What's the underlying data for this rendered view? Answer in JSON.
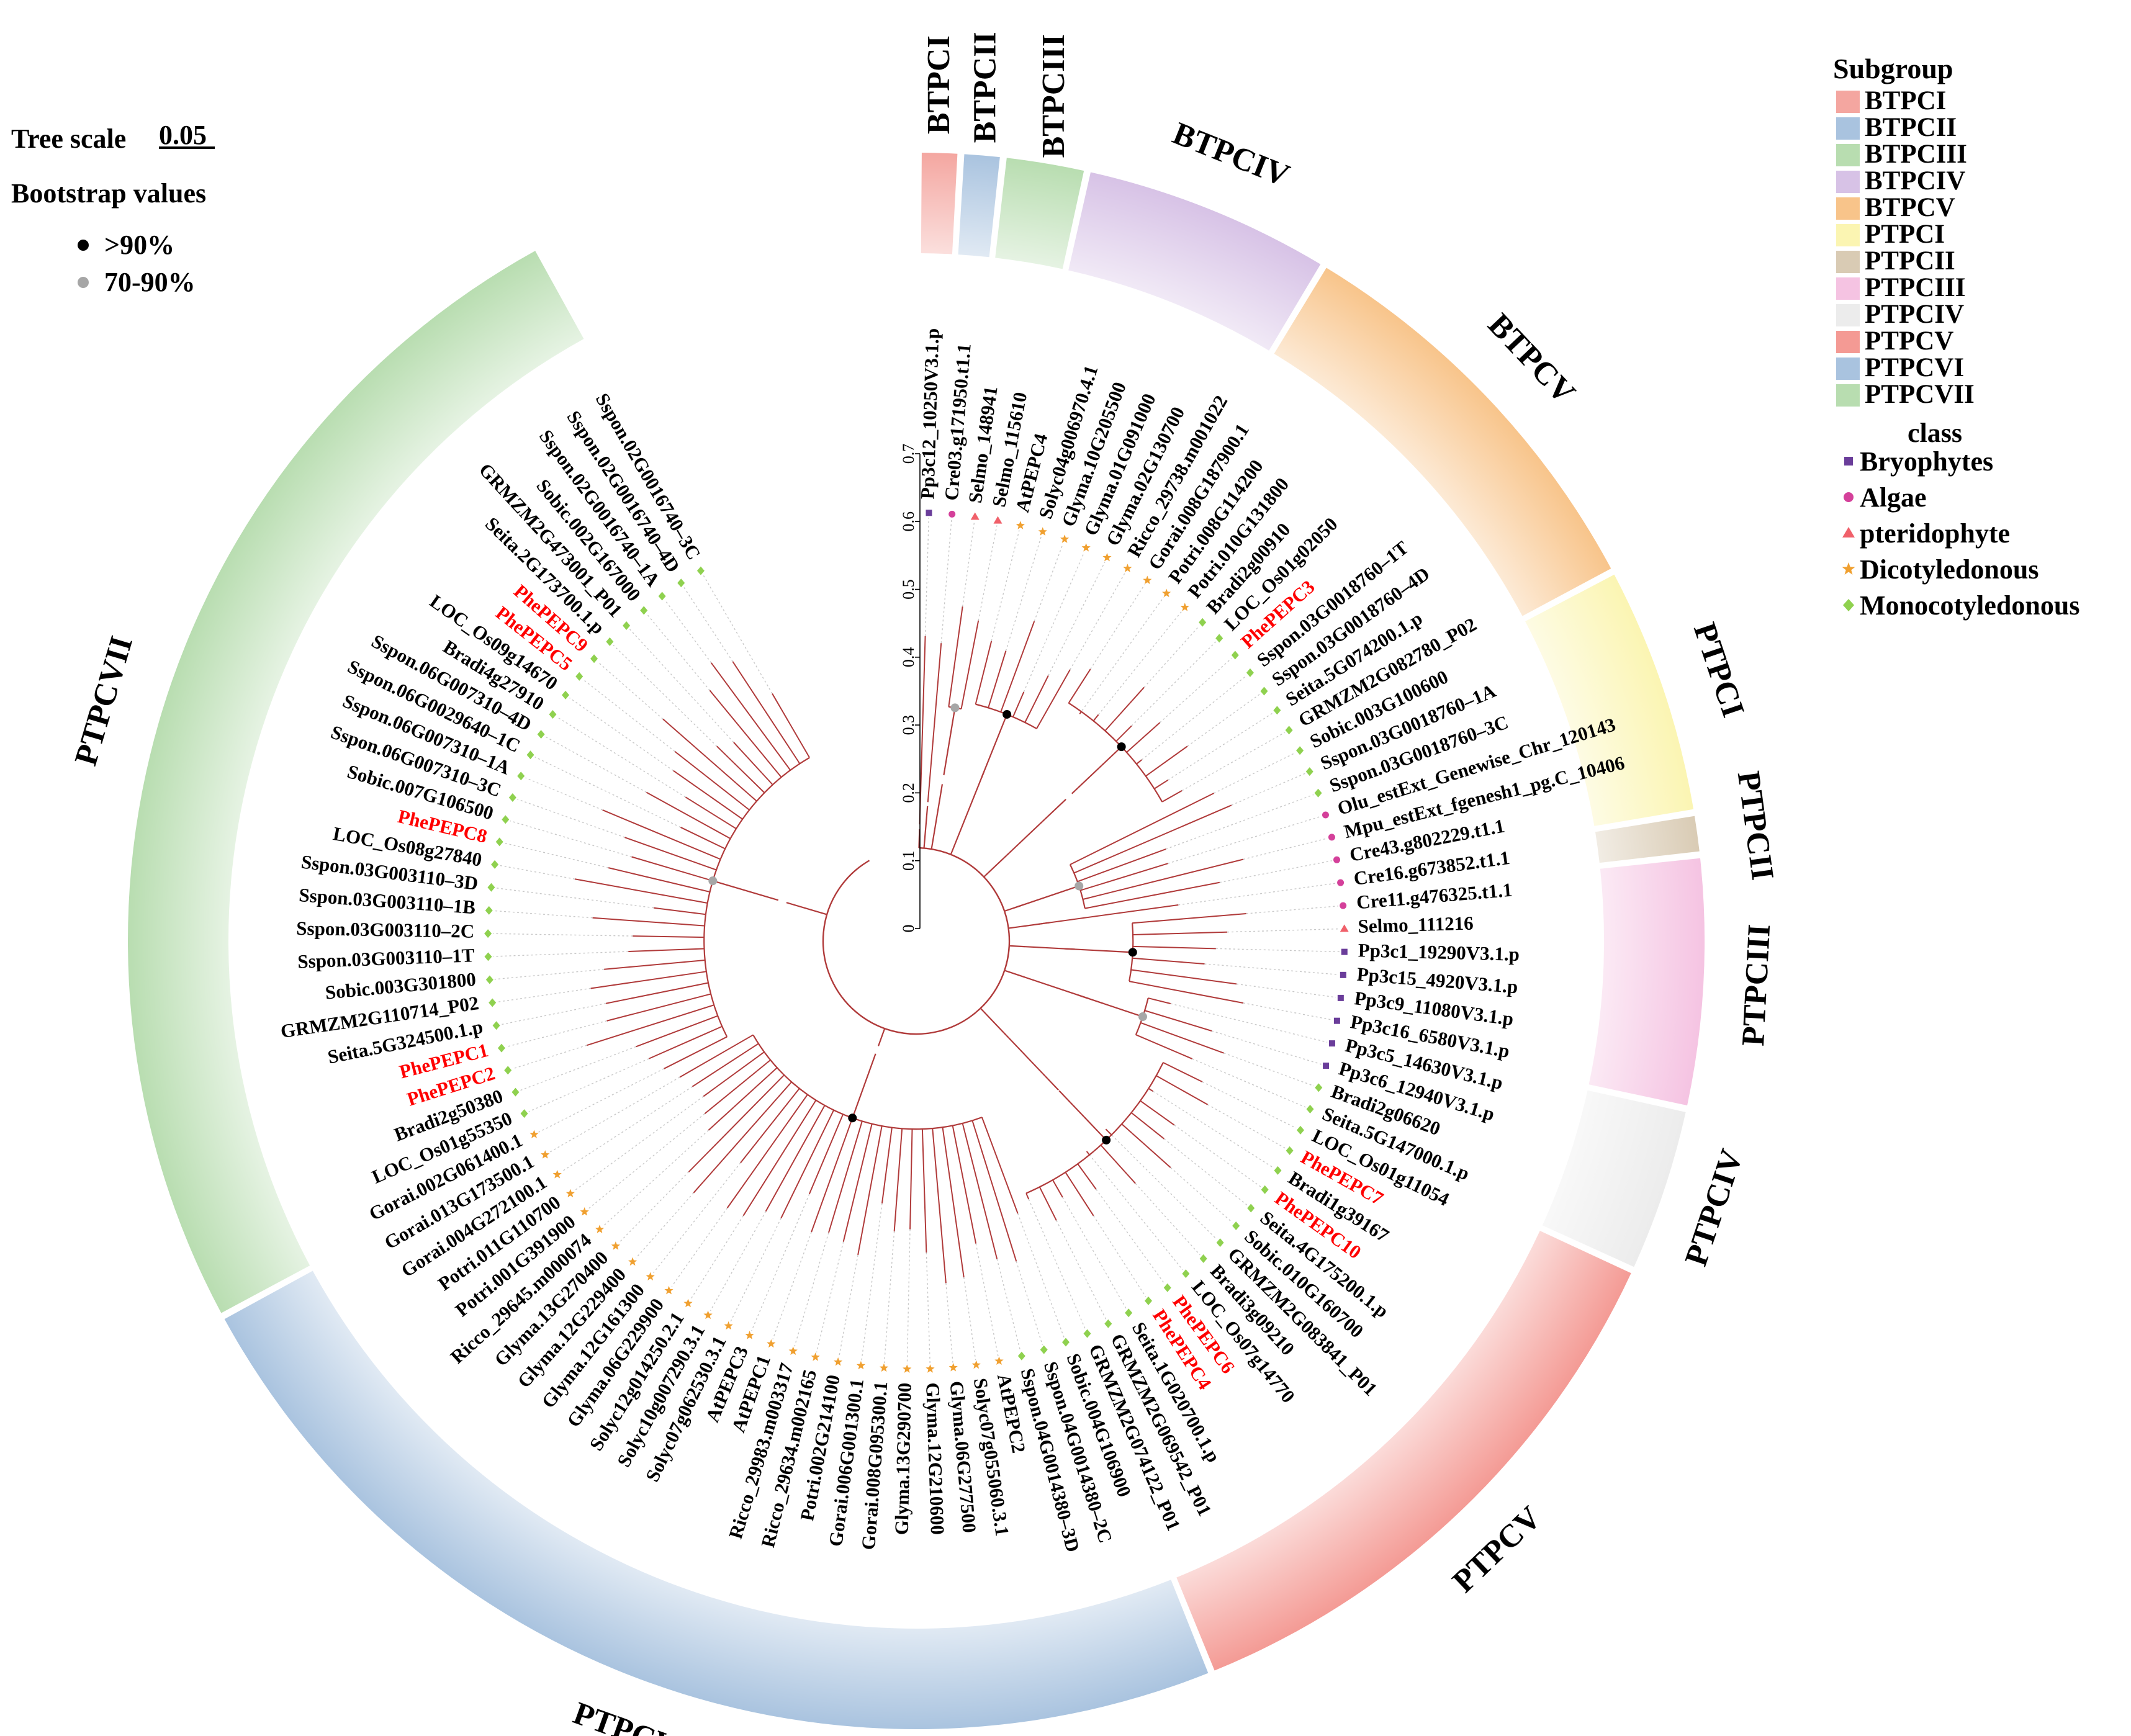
{
  "tree_scale": {
    "label": "Tree scale",
    "value": "0.05"
  },
  "bootstrap": {
    "title": "Bootstrap values",
    "items": [
      {
        "label": ">90%",
        "color": "#000000"
      },
      {
        "label": "70-90%",
        "color": "#a6a6a6"
      }
    ]
  },
  "subgroup_legend": {
    "title": "Subgroup",
    "items": [
      {
        "label": "BTPCI",
        "color": "#f4a6a0"
      },
      {
        "label": "BTPCII",
        "color": "#a9c3df"
      },
      {
        "label": "BTPCIII",
        "color": "#b8ddb0"
      },
      {
        "label": "BTPCIV",
        "color": "#d7c2e6"
      },
      {
        "label": "BTPCV",
        "color": "#f8c48a"
      },
      {
        "label": "PTPCI",
        "color": "#fbf5b2"
      },
      {
        "label": "PTPCII",
        "color": "#d9cbb4"
      },
      {
        "label": "PTPCIII",
        "color": "#f5c3e2"
      },
      {
        "label": "PTPCIV",
        "color": "#ececec"
      },
      {
        "label": "PTPCV",
        "color": "#f49a94"
      },
      {
        "label": "PTPCVI",
        "color": "#a9c3df"
      },
      {
        "label": "PTPCVII",
        "color": "#b8ddb0"
      }
    ]
  },
  "class_legend": {
    "title": "class",
    "items": [
      {
        "label": "Bryophytes",
        "shape": "square",
        "color": "#6a3d9a"
      },
      {
        "label": "Algae",
        "shape": "circle",
        "color": "#d4409a"
      },
      {
        "label": "pteridophyte",
        "shape": "triangle",
        "color": "#f0606a"
      },
      {
        "label": "Dicotyledonous",
        "shape": "star",
        "color": "#f0a030"
      },
      {
        "label": "Monocotyledonous",
        "shape": "diamond",
        "color": "#8fd14f"
      }
    ]
  },
  "colors": {
    "branch": "#b03a3a",
    "highlight": "#ff0000",
    "guide": "#c8c8c8"
  },
  "scale_ticks": [
    "0.7",
    "0.6",
    "0.5",
    "0.4",
    "0.3",
    "0.2",
    "0.1",
    "0"
  ],
  "subgroups": [
    {
      "name": "BTPCI",
      "color": "#f4a6a0",
      "from": 0,
      "to": 0
    },
    {
      "name": "BTPCII",
      "color": "#a9c3df",
      "from": 1,
      "to": 1
    },
    {
      "name": "BTPCIII",
      "color": "#b8ddb0",
      "from": 2,
      "to": 3
    },
    {
      "name": "BTPCIV",
      "color": "#d7c2e6",
      "from": 4,
      "to": 9
    },
    {
      "name": "BTPCV",
      "color": "#f8c48a",
      "from": 10,
      "to": 19
    },
    {
      "name": "PTPCI",
      "color": "#fbf5b2",
      "from": 20,
      "to": 25
    },
    {
      "name": "PTPCII",
      "color": "#d9cbb4",
      "from": 26,
      "to": 26
    },
    {
      "name": "PTPCIII",
      "color": "#f5c3e2",
      "from": 27,
      "to": 32
    },
    {
      "name": "PTPCIV",
      "color": "#ececec",
      "from": 33,
      "to": 36
    },
    {
      "name": "PTPCV",
      "color": "#f49a94",
      "from": 37,
      "to": 50
    },
    {
      "name": "PTPCVI",
      "color": "#a9c3df",
      "from": 51,
      "to": 77
    },
    {
      "name": "PTPCVII",
      "color": "#b8ddb0",
      "from": 78,
      "to": 106
    }
  ],
  "leaves": [
    {
      "name": "Pp3c12_10250V3.1.p",
      "cls": "Bryophytes",
      "hl": false
    },
    {
      "name": "Cre03.g171950.t1.1",
      "cls": "Algae",
      "hl": false
    },
    {
      "name": "Selmo_148941",
      "cls": "pteridophyte",
      "hl": false
    },
    {
      "name": "Selmo_115610",
      "cls": "pteridophyte",
      "hl": false
    },
    {
      "name": "AtPEPC4",
      "cls": "Dicotyledonous",
      "hl": false
    },
    {
      "name": "Solyc04g006970.4.1",
      "cls": "Dicotyledonous",
      "hl": false
    },
    {
      "name": "Glyma.10G205500",
      "cls": "Dicotyledonous",
      "hl": false
    },
    {
      "name": "Glyma.01G091000",
      "cls": "Dicotyledonous",
      "hl": false
    },
    {
      "name": "Glyma.02G130700",
      "cls": "Dicotyledonous",
      "hl": false
    },
    {
      "name": "Ricco_29738.m001022",
      "cls": "Dicotyledonous",
      "hl": false
    },
    {
      "name": "Gorai.008G187900.1",
      "cls": "Dicotyledonous",
      "hl": false
    },
    {
      "name": "Potri.008G114200",
      "cls": "Dicotyledonous",
      "hl": false
    },
    {
      "name": "Potri.010G131800",
      "cls": "Dicotyledonous",
      "hl": false
    },
    {
      "name": "Bradi2g00910",
      "cls": "Monocotyledonous",
      "hl": false
    },
    {
      "name": "LOC_Os01g02050",
      "cls": "Monocotyledonous",
      "hl": false
    },
    {
      "name": "PhePEPC3",
      "cls": "Monocotyledonous",
      "hl": true
    },
    {
      "name": "Sspon.03G0018760–1T",
      "cls": "Monocotyledonous",
      "hl": false
    },
    {
      "name": "Sspon.03G0018760–4D",
      "cls": "Monocotyledonous",
      "hl": false
    },
    {
      "name": "Seita.5G074200.1.p",
      "cls": "Monocotyledonous",
      "hl": false
    },
    {
      "name": "GRMZM2G082780_P02",
      "cls": "Monocotyledonous",
      "hl": false
    },
    {
      "name": "Sobic.003G100600",
      "cls": "Monocotyledonous",
      "hl": false
    },
    {
      "name": "Sspon.03G0018760–1A",
      "cls": "Monocotyledonous",
      "hl": false
    },
    {
      "name": "Sspon.03G0018760–3C",
      "cls": "Monocotyledonous",
      "hl": false
    },
    {
      "name": "Olu_estExt_Genewise_Chr_120143",
      "cls": "Algae",
      "hl": false
    },
    {
      "name": "Mpu_estExt_fgenesh1_pg.C_10406",
      "cls": "Algae",
      "hl": false
    },
    {
      "name": "Cre43.g802229.t1.1",
      "cls": "Algae",
      "hl": false
    },
    {
      "name": "Cre16.g673852.t1.1",
      "cls": "Algae",
      "hl": false
    },
    {
      "name": "Cre11.g476325.t1.1",
      "cls": "Algae",
      "hl": false
    },
    {
      "name": "Selmo_111216",
      "cls": "pteridophyte",
      "hl": false
    },
    {
      "name": "Pp3c1_19290V3.1.p",
      "cls": "Bryophytes",
      "hl": false
    },
    {
      "name": "Pp3c15_4920V3.1.p",
      "cls": "Bryophytes",
      "hl": false
    },
    {
      "name": "Pp3c9_11080V3.1.p",
      "cls": "Bryophytes",
      "hl": false
    },
    {
      "name": "Pp3c16_6580V3.1.p",
      "cls": "Bryophytes",
      "hl": false
    },
    {
      "name": "Pp3c5_14630V3.1.p",
      "cls": "Bryophytes",
      "hl": false
    },
    {
      "name": "Pp3c6_12940V3.1.p",
      "cls": "Bryophytes",
      "hl": false
    },
    {
      "name": "Bradi2g06620",
      "cls": "Monocotyledonous",
      "hl": false
    },
    {
      "name": "Seita.5G147000.1.p",
      "cls": "Monocotyledonous",
      "hl": false
    },
    {
      "name": "LOC_Os01g11054",
      "cls": "Monocotyledonous",
      "hl": false
    },
    {
      "name": "PhePEPC7",
      "cls": "Monocotyledonous",
      "hl": true
    },
    {
      "name": "Bradi1g39167",
      "cls": "Monocotyledonous",
      "hl": false
    },
    {
      "name": "PhePEPC10",
      "cls": "Monocotyledonous",
      "hl": true
    },
    {
      "name": "Seita.4G175200.1.p",
      "cls": "Monocotyledonous",
      "hl": false
    },
    {
      "name": "Sobic.010G160700",
      "cls": "Monocotyledonous",
      "hl": false
    },
    {
      "name": "GRMZM2G083841_P01",
      "cls": "Monocotyledonous",
      "hl": false
    },
    {
      "name": "Bradi3g09210",
      "cls": "Monocotyledonous",
      "hl": false
    },
    {
      "name": "LOC_Os07g14770",
      "cls": "Monocotyledonous",
      "hl": false
    },
    {
      "name": "PhePEPC6",
      "cls": "Monocotyledonous",
      "hl": true
    },
    {
      "name": "PhePEPC4",
      "cls": "Monocotyledonous",
      "hl": true
    },
    {
      "name": "Seita.1G020700.1.p",
      "cls": "Monocotyledonous",
      "hl": false
    },
    {
      "name": "GRMZM2G069542_P01",
      "cls": "Monocotyledonous",
      "hl": false
    },
    {
      "name": "GRMZM2G074122_P01",
      "cls": "Monocotyledonous",
      "hl": false
    },
    {
      "name": "Sobic.004G106900",
      "cls": "Monocotyledonous",
      "hl": false
    },
    {
      "name": "Sspon.04G0014380–2C",
      "cls": "Monocotyledonous",
      "hl": false
    },
    {
      "name": "Sspon.04G0014380–3D",
      "cls": "Monocotyledonous",
      "hl": false
    },
    {
      "name": "AtPEPC2",
      "cls": "Dicotyledonous",
      "hl": false
    },
    {
      "name": "Solyc07g055060.3.1",
      "cls": "Dicotyledonous",
      "hl": false
    },
    {
      "name": "Glyma.06G277500",
      "cls": "Dicotyledonous",
      "hl": false
    },
    {
      "name": "Glyma.12G210600",
      "cls": "Dicotyledonous",
      "hl": false
    },
    {
      "name": "Glyma.13G290700",
      "cls": "Dicotyledonous",
      "hl": false
    },
    {
      "name": "Gorai.008G095300.1",
      "cls": "Dicotyledonous",
      "hl": false
    },
    {
      "name": "Gorai.006G001300.1",
      "cls": "Dicotyledonous",
      "hl": false
    },
    {
      "name": "Potri.002G214100",
      "cls": "Dicotyledonous",
      "hl": false
    },
    {
      "name": "Ricco_29634.m002165",
      "cls": "Dicotyledonous",
      "hl": false
    },
    {
      "name": "Ricco_29983.m003317",
      "cls": "Dicotyledonous",
      "hl": false
    },
    {
      "name": "AtPEPC1",
      "cls": "Dicotyledonous",
      "hl": false
    },
    {
      "name": "AtPEPC3",
      "cls": "Dicotyledonous",
      "hl": false
    },
    {
      "name": "Solyc07g062530.3.1",
      "cls": "Dicotyledonous",
      "hl": false
    },
    {
      "name": "Solyc10g007290.3.1",
      "cls": "Dicotyledonous",
      "hl": false
    },
    {
      "name": "Solyc12g014250.2.1",
      "cls": "Dicotyledonous",
      "hl": false
    },
    {
      "name": "Glyma.06G229900",
      "cls": "Dicotyledonous",
      "hl": false
    },
    {
      "name": "Glyma.12G161300",
      "cls": "Dicotyledonous",
      "hl": false
    },
    {
      "name": "Glyma.12G229400",
      "cls": "Dicotyledonous",
      "hl": false
    },
    {
      "name": "Glyma.13G270400",
      "cls": "Dicotyledonous",
      "hl": false
    },
    {
      "name": "Ricco_29645.m000074",
      "cls": "Dicotyledonous",
      "hl": false
    },
    {
      "name": "Potri.001G391900",
      "cls": "Dicotyledonous",
      "hl": false
    },
    {
      "name": "Potri.011G110700",
      "cls": "Dicotyledonous",
      "hl": false
    },
    {
      "name": "Gorai.004G272100.1",
      "cls": "Dicotyledonous",
      "hl": false
    },
    {
      "name": "Gorai.013G173500.1",
      "cls": "Dicotyledonous",
      "hl": false
    },
    {
      "name": "Gorai.002G061400.1",
      "cls": "Dicotyledonous",
      "hl": false
    },
    {
      "name": "LOC_Os01g55350",
      "cls": "Monocotyledonous",
      "hl": false
    },
    {
      "name": "Bradi2g50380",
      "cls": "Monocotyledonous",
      "hl": false
    },
    {
      "name": "PhePEPC2",
      "cls": "Monocotyledonous",
      "hl": true
    },
    {
      "name": "PhePEPC1",
      "cls": "Monocotyledonous",
      "hl": true
    },
    {
      "name": "Seita.5G324500.1.p",
      "cls": "Monocotyledonous",
      "hl": false
    },
    {
      "name": "GRMZM2G110714_P02",
      "cls": "Monocotyledonous",
      "hl": false
    },
    {
      "name": "Sobic.003G301800",
      "cls": "Monocotyledonous",
      "hl": false
    },
    {
      "name": "Sspon.03G003110–1T",
      "cls": "Monocotyledonous",
      "hl": false
    },
    {
      "name": "Sspon.03G003110–2C",
      "cls": "Monocotyledonous",
      "hl": false
    },
    {
      "name": "Sspon.03G003110–1B",
      "cls": "Monocotyledonous",
      "hl": false
    },
    {
      "name": "Sspon.03G003110–3D",
      "cls": "Monocotyledonous",
      "hl": false
    },
    {
      "name": "LOC_Os08g27840",
      "cls": "Monocotyledonous",
      "hl": false
    },
    {
      "name": "PhePEPC8",
      "cls": "Monocotyledonous",
      "hl": true
    },
    {
      "name": "Sobic.007G106500",
      "cls": "Monocotyledonous",
      "hl": false
    },
    {
      "name": "Sspon.06G007310–3C",
      "cls": "Monocotyledonous",
      "hl": false
    },
    {
      "name": "Sspon.06G007310–1A",
      "cls": "Monocotyledonous",
      "hl": false
    },
    {
      "name": "Sspon.06G0029640–1C",
      "cls": "Monocotyledonous",
      "hl": false
    },
    {
      "name": "Sspon.06G007310–4D",
      "cls": "Monocotyledonous",
      "hl": false
    },
    {
      "name": "Bradi4g27910",
      "cls": "Monocotyledonous",
      "hl": false
    },
    {
      "name": "LOC_Os09g14670",
      "cls": "Monocotyledonous",
      "hl": false
    },
    {
      "name": "PhePEPC5",
      "cls": "Monocotyledonous",
      "hl": true
    },
    {
      "name": "PhePEPC9",
      "cls": "Monocotyledonous",
      "hl": true
    },
    {
      "name": "Seita.2G173700.1.p",
      "cls": "Monocotyledonous",
      "hl": false
    },
    {
      "name": "GRMZM2G473001_P01",
      "cls": "Monocotyledonous",
      "hl": false
    },
    {
      "name": "Sobic.002G167000",
      "cls": "Monocotyledonous",
      "hl": false
    },
    {
      "name": "Sspon.02G0016740–1A",
      "cls": "Monocotyledonous",
      "hl": false
    },
    {
      "name": "Sspon.02G0016740–4D",
      "cls": "Monocotyledonous",
      "hl": false
    },
    {
      "name": "Sspon.02G0016740–3C",
      "cls": "Monocotyledonous",
      "hl": false
    }
  ]
}
